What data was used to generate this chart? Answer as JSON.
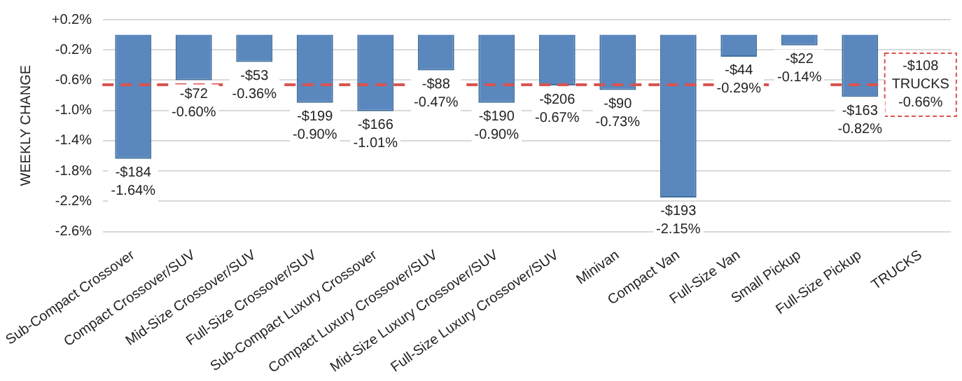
{
  "chart_data": {
    "type": "bar",
    "ylabel": "WEEKLY CHANGE",
    "categories": [
      "Sub-Compact Crossover",
      "Compact Crossover/SUV",
      "Mid-Size Crossover/SUV",
      "Full-Size Crossover/SUV",
      "Sub-Compact Luxury Crossover",
      "Compact Luxury Crossover/SUV",
      "Mid-Size Luxury Crossover/SUV",
      "Full-Size Luxury Crossover/SUV",
      "Minivan",
      "Compact Van",
      "Full-Size Van",
      "Small Pickup",
      "Full-Size Pickup",
      "TRUCKS"
    ],
    "values": [
      -1.64,
      -0.6,
      -0.36,
      -0.9,
      -1.01,
      -0.47,
      -0.9,
      -0.67,
      -0.73,
      -2.15,
      -0.29,
      -0.14,
      -0.82,
      null
    ],
    "value_labels": [
      "-$184\n-1.64%",
      "-$72\n-0.60%",
      "-$53\n-0.36%",
      "-$199\n-0.90%",
      "-$166\n-1.01%",
      "-$88\n-0.47%",
      "-$190\n-0.90%",
      "-$206\n-0.67%",
      "-$90\n-0.73%",
      "-$193\n-2.15%",
      "-$44\n-0.29%",
      "-$22\n-0.14%",
      "-$163\n-0.82%",
      null
    ],
    "color": "#5b87bf",
    "ylim": [
      -2.6,
      0.2
    ],
    "yticks": [
      {
        "value": 0.2,
        "label": "+0.2%"
      },
      {
        "value": -0.2,
        "label": "-0.2%"
      },
      {
        "value": -0.6,
        "label": "-0.6%"
      },
      {
        "value": -1.0,
        "label": "-1.0%"
      },
      {
        "value": -1.4,
        "label": "-1.4%"
      },
      {
        "value": -1.8,
        "label": "-1.8%"
      },
      {
        "value": -2.2,
        "label": "-2.2%"
      },
      {
        "value": -2.6,
        "label": "-2.6%"
      }
    ],
    "grid": "y",
    "ref_lines": [
      {
        "axis": "y",
        "value": -0.66,
        "label": "-$108\nTRUCKS\n-0.66%",
        "color": "#d9534f",
        "line_style": "dashed"
      }
    ],
    "legend": false
  }
}
